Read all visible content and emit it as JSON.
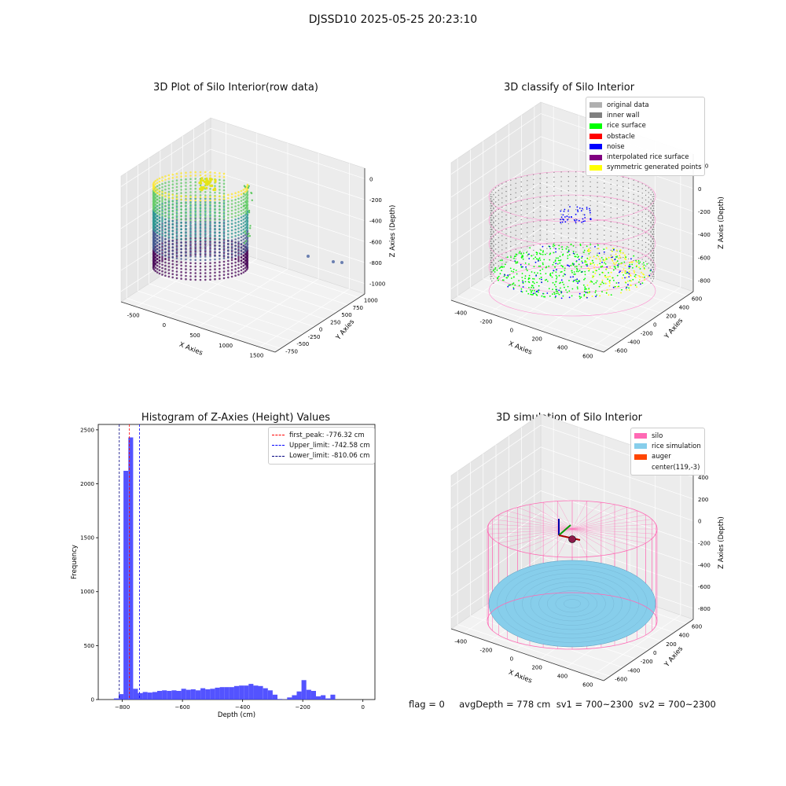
{
  "suptitle": "DJSSD10 2025-05-25 20:23:10",
  "footer": "flag = 0     avgDepth = 778 cm  sv1 = 700~2300  sv2 = 700~2300",
  "colors": {
    "viridis": [
      "#440154",
      "#3b528b",
      "#21918c",
      "#5ec962",
      "#fde725"
    ],
    "original": "#b0b0b0",
    "inner_wall": "#808080",
    "rice_surface": "#00ff00",
    "obstacle": "#ff0000",
    "noise": "#0000ff",
    "interpolated": "#800080",
    "symmetric": "#ffff00",
    "silo": "#ff69b4",
    "rice_sim": "#87ceeb",
    "auger": "#ff4500",
    "hist_bar": "#4040ff"
  },
  "panels": {
    "raw": {
      "title": "3D Plot of Silo Interior(row data)",
      "xlabel": "X Axies",
      "ylabel": "Y Axies",
      "zlabel": "Z Axies (Depth)",
      "xticks": [
        "-500",
        "0",
        "500",
        "1000",
        "1500"
      ],
      "yticks": [
        "-750",
        "-500",
        "-250",
        "0",
        "250",
        "500",
        "750",
        "1000"
      ],
      "zticks": [
        "0",
        "-200",
        "-400",
        "-600",
        "-800",
        "-1000"
      ]
    },
    "classify": {
      "title": "3D classify of Silo Interior",
      "xlabel": "X Axies",
      "ylabel": "Y Axies",
      "zlabel": "Z Axies (Depth)",
      "xticks": [
        "-400",
        "-200",
        "0",
        "200",
        "400",
        "600"
      ],
      "yticks": [
        "-600",
        "-400",
        "-200",
        "0",
        "200",
        "400",
        "600"
      ],
      "zticks": [
        "200",
        "0",
        "-200",
        "-400",
        "-600",
        "-800"
      ],
      "legend": [
        {
          "label": "original data",
          "color": "#b0b0b0"
        },
        {
          "label": "inner wall",
          "color": "#808080"
        },
        {
          "label": "rice surface",
          "color": "#00ff00"
        },
        {
          "label": "obstacle",
          "color": "#ff0000"
        },
        {
          "label": "noise",
          "color": "#0000ff"
        },
        {
          "label": "interpolated rice surface",
          "color": "#800080"
        },
        {
          "label": "symmetric generated points",
          "color": "#ffff00"
        }
      ]
    },
    "simulation": {
      "title": "3D simulation of Silo Interior",
      "xlabel": "X Axies",
      "ylabel": "Y Axies",
      "zlabel": "Z Axies (Depth)",
      "xticks": [
        "-400",
        "-200",
        "0",
        "200",
        "400",
        "600"
      ],
      "yticks": [
        "-600",
        "-400",
        "-200",
        "0",
        "200",
        "400",
        "600"
      ],
      "zticks": [
        "400",
        "200",
        "0",
        "-200",
        "-400",
        "-600",
        "-800"
      ],
      "legend": [
        {
          "label": "silo",
          "color": "#ff69b4"
        },
        {
          "label": "rice simulation",
          "color": "#87ceeb"
        },
        {
          "label": "auger",
          "color": "#ff4500"
        },
        {
          "label": "center(119,-3)",
          "color": ""
        }
      ]
    }
  },
  "chart_data": [
    {
      "type": "bar",
      "title": "Histogram of Z-Axies (Height) Values",
      "xlabel": "Depth (cm)",
      "ylabel": "Frequency",
      "xlim": [
        -880,
        40
      ],
      "ylim": [
        0,
        2550
      ],
      "xticks": [
        -800,
        -600,
        -400,
        -200,
        0
      ],
      "yticks": [
        0,
        500,
        1000,
        1500,
        2000,
        2500
      ],
      "bin_width": 16,
      "bins_start": [
        -828,
        -812,
        -796,
        -780,
        -764,
        -748,
        -732,
        -716,
        -700,
        -684,
        -668,
        -652,
        -636,
        -620,
        -604,
        -588,
        -572,
        -556,
        -540,
        -524,
        -508,
        -492,
        -476,
        -460,
        -444,
        -428,
        -412,
        -396,
        -380,
        -364,
        -348,
        -332,
        -316,
        -300,
        -284,
        -268,
        -252,
        -236,
        -220,
        -204,
        -188,
        -172,
        -156,
        -140,
        -124,
        -108,
        -92,
        -76,
        -60,
        -44,
        -28,
        -12
      ],
      "values": [
        10,
        50,
        2120,
        2430,
        100,
        60,
        70,
        65,
        70,
        80,
        85,
        80,
        85,
        80,
        100,
        90,
        95,
        85,
        105,
        95,
        100,
        110,
        115,
        115,
        115,
        125,
        130,
        130,
        145,
        130,
        125,
        105,
        85,
        45,
        5,
        2,
        20,
        40,
        75,
        180,
        90,
        80,
        30,
        40,
        10,
        45,
        0,
        0,
        0,
        0,
        0,
        0
      ],
      "lines": [
        {
          "name": "first_peak: -776.32 cm",
          "x": -776.32,
          "color": "#ff0000"
        },
        {
          "name": "Upper_limit: -742.58 cm",
          "x": -742.58,
          "color": "#0000ff"
        },
        {
          "name": "Lower_limit: -810.06 cm",
          "x": -810.06,
          "color": "#000080"
        }
      ]
    }
  ]
}
